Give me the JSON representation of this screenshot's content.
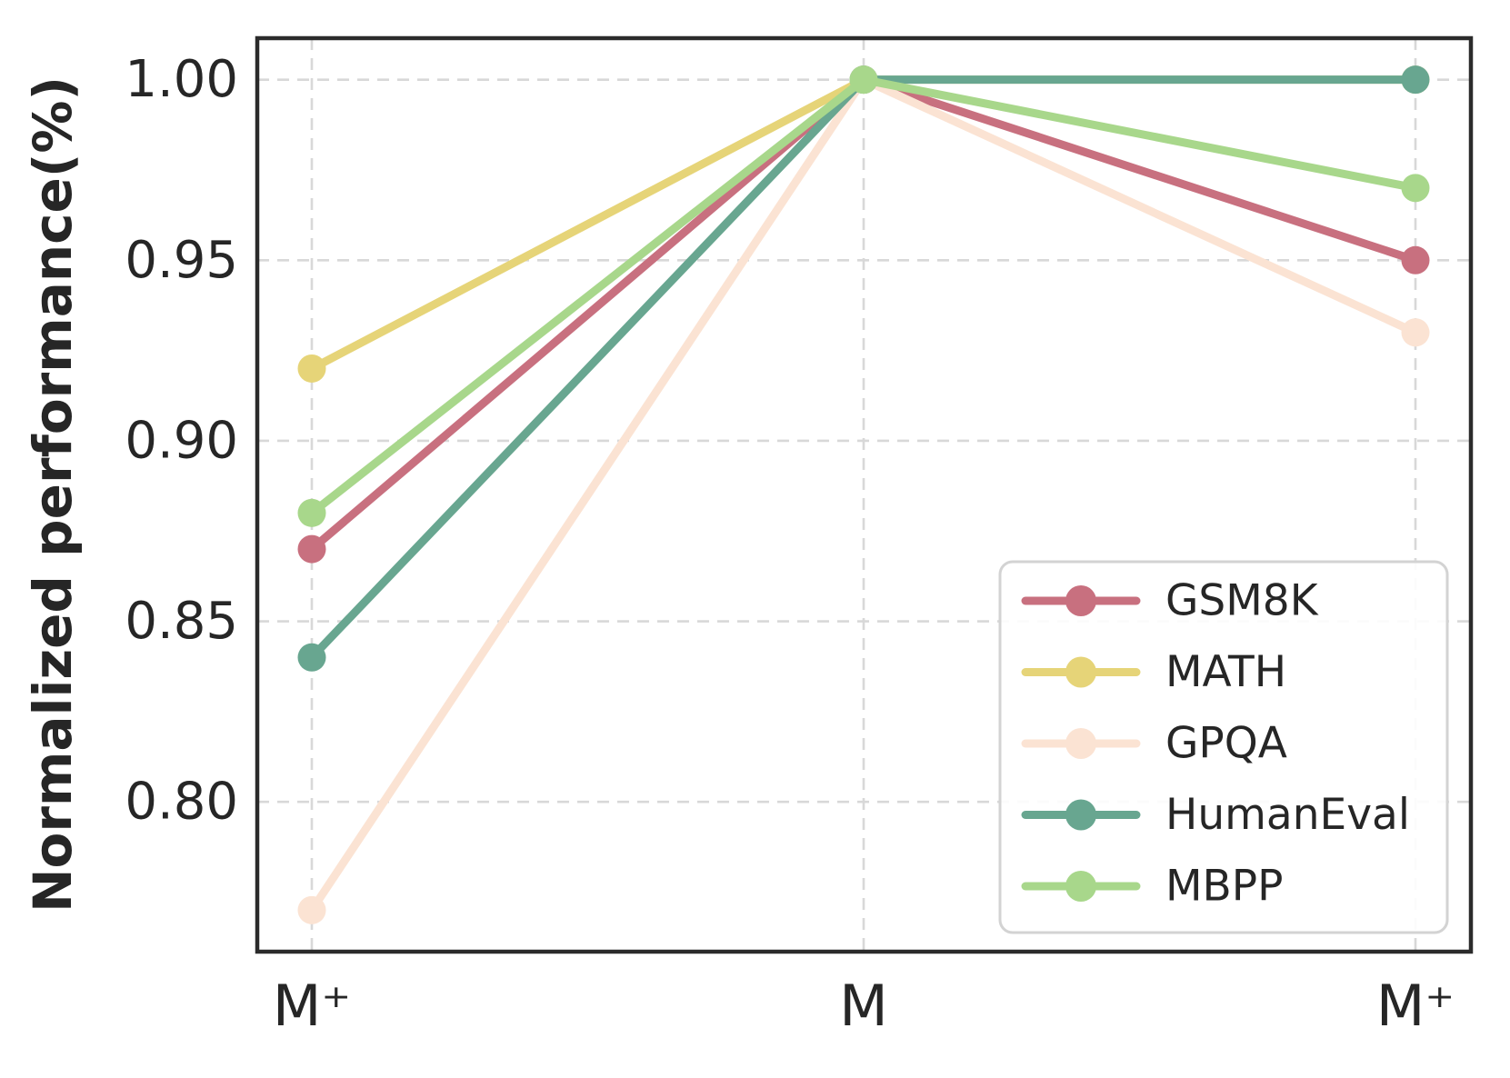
{
  "chart_data": {
    "type": "line",
    "categories": [
      "M⁺",
      "M",
      "M⁺"
    ],
    "series": [
      {
        "name": "GSM8K",
        "color": "#c8707f",
        "values": [
          0.87,
          1.0,
          0.95
        ]
      },
      {
        "name": "MATH",
        "color": "#e6d478",
        "values": [
          0.92,
          1.0,
          1.0
        ]
      },
      {
        "name": "GPQA",
        "color": "#fbe3d3",
        "values": [
          0.77,
          1.0,
          0.93
        ]
      },
      {
        "name": "HumanEval",
        "color": "#68a690",
        "values": [
          0.84,
          1.0,
          1.0
        ]
      },
      {
        "name": "MBPP",
        "color": "#a8d78b",
        "values": [
          0.88,
          1.0,
          0.97
        ]
      }
    ],
    "title": "",
    "xlabel": "",
    "ylabel": "Normalized performance(%)",
    "yticks": [
      0.8,
      0.85,
      0.9,
      0.95,
      1.0
    ],
    "ytick_labels": [
      "0.80",
      "0.85",
      "0.90",
      "0.95",
      "1.00"
    ],
    "ylim": [
      0.7585,
      1.0115
    ],
    "grid": "dashed-both-axes",
    "legend": {
      "position": "lower-right-inside",
      "entries": [
        "GSM8K",
        "MATH",
        "GPQA",
        "HumanEval",
        "MBPP"
      ]
    }
  },
  "style_colors": {
    "grid": "#d8d8d8",
    "spine": "#2b2b2b",
    "text": "#262626",
    "legend_border": "#d3d3d3",
    "background": "#ffffff"
  }
}
